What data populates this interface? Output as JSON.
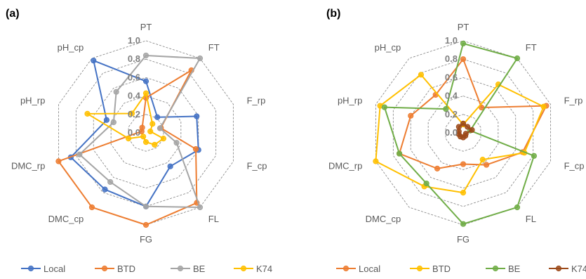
{
  "chart_data": [
    {
      "type": "radar",
      "panel_label": "(a)",
      "axes": [
        "PT",
        "FT",
        "F_rp",
        "F_cp",
        "FL",
        "FG",
        "DMC_cp",
        "DMC_rp",
        "pH_rp",
        "pH_cp"
      ],
      "ticks": [
        "0.0",
        "0.2",
        "0.4",
        "0.6",
        "0.8",
        "1.0"
      ],
      "rlim": [
        0,
        1
      ],
      "grid": true,
      "legend_position": "bottom",
      "series": [
        {
          "name": "Local",
          "color": "#4472C4",
          "values": [
            0.56,
            0.21,
            0.58,
            0.6,
            0.45,
            0.8,
            0.76,
            0.86,
            0.45,
            0.97
          ]
        },
        {
          "name": "BTD",
          "color": "#ED7D31",
          "values": [
            0.38,
            0.84,
            0.17,
            0.57,
            0.94,
            1.0,
            1.0,
            1.0,
            0.05,
            0.07
          ]
        },
        {
          "name": "BE",
          "color": "#A5A5A5",
          "values": [
            0.84,
            1.0,
            0.16,
            0.35,
            1.0,
            0.8,
            0.66,
            0.76,
            0.37,
            0.55
          ]
        },
        {
          "name": "K74",
          "color": "#FFC000",
          "values": [
            0.43,
            0.12,
            0.05,
            0.2,
            0.16,
            0.1,
            0.05,
            0.2,
            0.67,
            0.26
          ]
        }
      ]
    },
    {
      "type": "radar",
      "panel_label": "(b)",
      "axes": [
        "PT",
        "FT",
        "F_rp",
        "F_cp",
        "FL",
        "FG",
        "DMC_cp",
        "DMC_rp",
        "pH_rp",
        "pH_cp"
      ],
      "ticks": [
        "0.0",
        "0.2",
        "0.4",
        "0.6",
        "0.8",
        "1.0"
      ],
      "rlim": [
        0,
        1
      ],
      "grid": true,
      "legend_position": "bottom",
      "series": [
        {
          "name": "Local",
          "color": "#ED7D31",
          "values": [
            0.8,
            0.34,
            0.95,
            0.68,
            0.43,
            0.34,
            0.48,
            0.73,
            0.6,
            0.51
          ]
        },
        {
          "name": "BTD",
          "color": "#FFC000",
          "values": [
            0.09,
            0.65,
            0.92,
            0.7,
            0.36,
            0.65,
            0.72,
            1.0,
            0.95,
            0.78
          ]
        },
        {
          "name": "BE",
          "color": "#70AD47",
          "values": [
            0.97,
            1.0,
            0.08,
            0.81,
            1.0,
            0.99,
            0.68,
            0.73,
            0.9,
            0.32
          ]
        },
        {
          "name": "K74",
          "color": "#9C4A1A",
          "values": [
            0.1,
            0.08,
            0.1,
            0.03,
            0.04,
            0.05,
            0.05,
            0.05,
            0.05,
            0.08
          ]
        }
      ]
    }
  ]
}
